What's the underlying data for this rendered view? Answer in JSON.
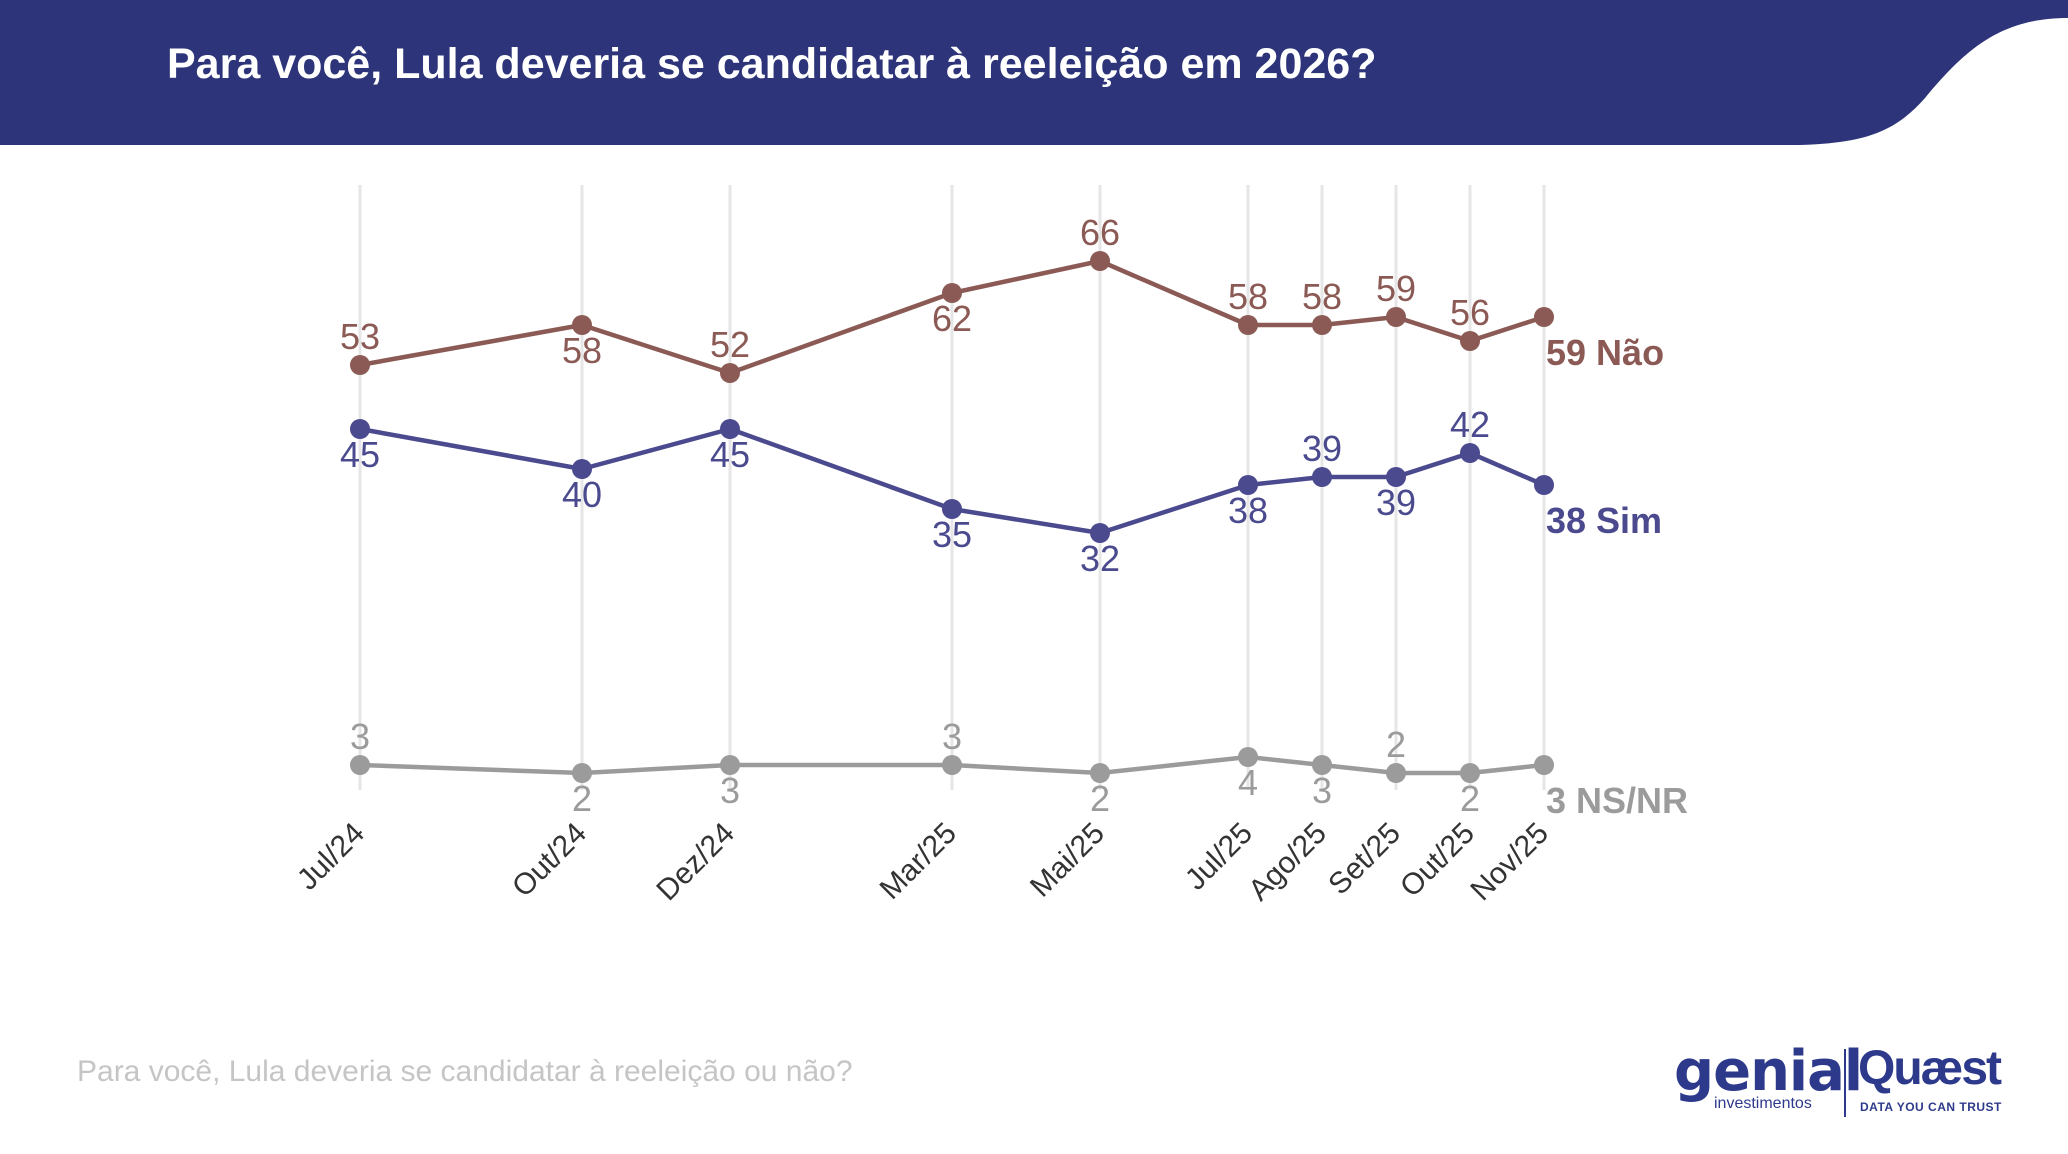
{
  "header": {
    "title": "Para você, Lula deveria se candidatar à reeleição em 2026?",
    "band_color": "#2d3479"
  },
  "footnote": "Para você, Lula deveria se candidatar à reeleição ou não?",
  "logos": {
    "genial": "genial",
    "genial_sub": "investimentos",
    "quaest": "Quæst",
    "quaest_sub": "DATA YOU CAN TRUST"
  },
  "chart_data": {
    "type": "line",
    "title": "Para você, Lula deveria se candidatar à reeleição em 2026?",
    "xlabel": "",
    "ylabel": "",
    "ylim": [
      0,
      70
    ],
    "grid": "vertical",
    "x": [
      "Jul/24",
      "Out/24",
      "Dez/24",
      "Mar/25",
      "Mai/25",
      "Jul/25",
      "Ago/25",
      "Set/25",
      "Out/25",
      "Nov/25"
    ],
    "x_month_index": [
      0,
      3,
      5,
      8,
      10,
      12,
      13,
      14,
      15,
      16
    ],
    "series": [
      {
        "name": "Não",
        "end_label": "59 Não",
        "color": "#8b5a55",
        "values": [
          53,
          58,
          52,
          62,
          66,
          58,
          58,
          59,
          56,
          59
        ],
        "label_pos": [
          "above",
          "below",
          "above",
          "below",
          "above",
          "above",
          "above",
          "above",
          "above",
          "none"
        ]
      },
      {
        "name": "Sim",
        "end_label": "38 Sim",
        "color": "#4b4a8e",
        "values": [
          45,
          40,
          45,
          35,
          32,
          38,
          39,
          39,
          42,
          38
        ],
        "label_pos": [
          "below",
          "below",
          "below",
          "below",
          "below",
          "below",
          "above",
          "below",
          "above",
          "none"
        ]
      },
      {
        "name": "NS/NR",
        "end_label": "3 NS/NR",
        "color": "#9b9b9b",
        "values": [
          3,
          2,
          3,
          3,
          2,
          4,
          3,
          2,
          2,
          3
        ],
        "label_pos": [
          "above",
          "below",
          "below",
          "above",
          "below",
          "below",
          "below",
          "above",
          "below",
          "none"
        ]
      }
    ]
  }
}
